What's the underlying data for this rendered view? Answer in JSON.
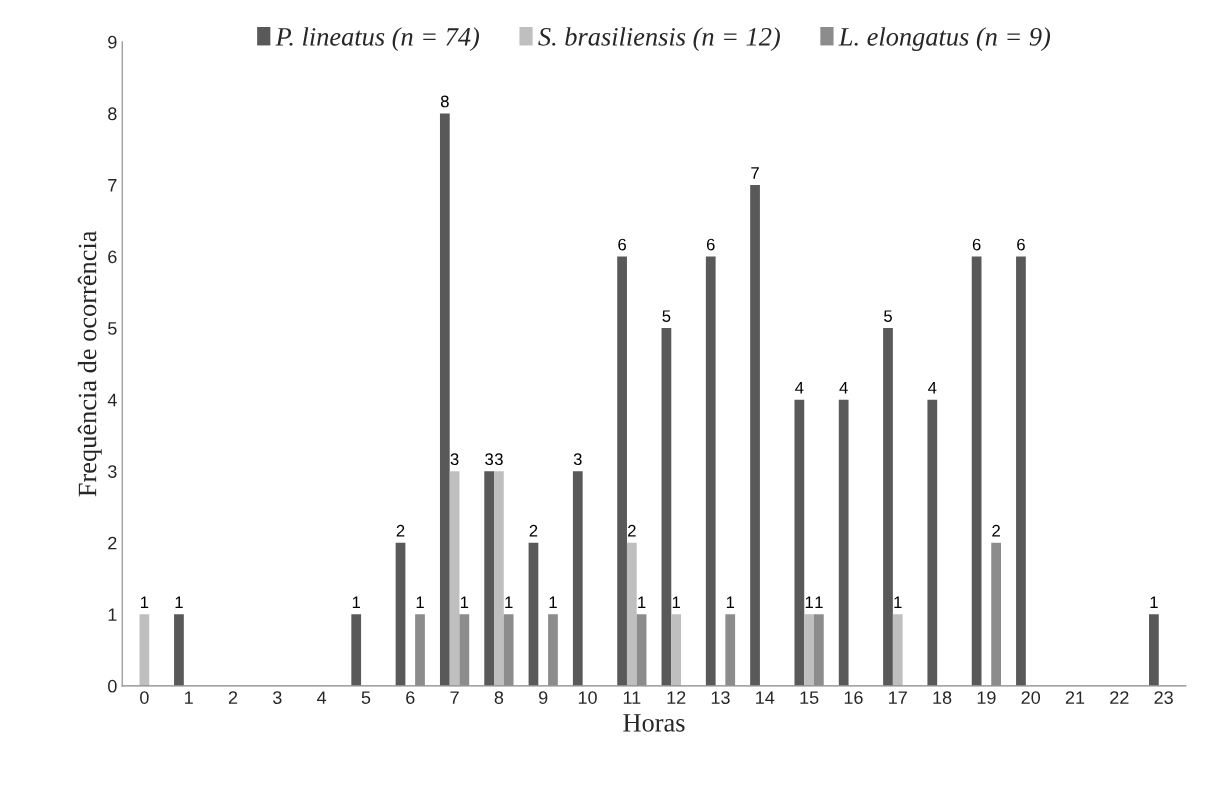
{
  "chart_data": {
    "type": "bar",
    "xlabel": "Horas",
    "ylabel": "Frequência de ocorrência",
    "categories": [
      "0",
      "1",
      "2",
      "3",
      "4",
      "5",
      "6",
      "7",
      "8",
      "9",
      "10",
      "11",
      "12",
      "13",
      "14",
      "15",
      "16",
      "17",
      "18",
      "19",
      "20",
      "21",
      "22",
      "23"
    ],
    "series": [
      {
        "name": "P. lineatus (n = 74)",
        "color": "#595959",
        "values": [
          0,
          1,
          0,
          0,
          0,
          1,
          2,
          8,
          3,
          2,
          3,
          6,
          5,
          6,
          7,
          4,
          4,
          5,
          4,
          6,
          6,
          0,
          0,
          1
        ],
        "value_labels": [
          null,
          "1",
          null,
          null,
          null,
          "1",
          "2",
          "8",
          "3",
          "2",
          "3",
          "6",
          "5",
          "6",
          "7",
          "4",
          "4",
          "5",
          "4",
          "6",
          "6",
          null,
          null,
          "1"
        ]
      },
      {
        "name": "S. brasiliensis (n = 12)",
        "color": "#bfbfbf",
        "values": [
          1,
          0,
          0,
          0,
          0,
          0,
          0,
          3,
          3,
          0,
          0,
          2,
          1,
          0,
          0,
          1,
          0,
          1,
          0,
          0,
          0,
          0,
          0,
          0
        ],
        "value_labels": [
          "1",
          null,
          null,
          null,
          null,
          null,
          null,
          "3",
          "3",
          null,
          null,
          "2",
          "1",
          null,
          null,
          "1",
          null,
          "1",
          null,
          null,
          null,
          null,
          null,
          null
        ]
      },
      {
        "name": "L. elongatus (n = 9)",
        "color": "#8c8c8c",
        "values": [
          0,
          0,
          0,
          0,
          0,
          0,
          1,
          1,
          1,
          1,
          0,
          1,
          0,
          1,
          0,
          1,
          0,
          0,
          0,
          2,
          0,
          0,
          0,
          0
        ],
        "value_labels": [
          null,
          null,
          null,
          null,
          null,
          null,
          "1",
          "1",
          "1",
          "1",
          null,
          "1",
          null,
          "1",
          null,
          "1",
          null,
          null,
          null,
          "2",
          null,
          null,
          null,
          null
        ]
      }
    ],
    "ylim": [
      0,
      9
    ],
    "yticks": [
      0,
      1,
      2,
      3,
      4,
      5,
      6,
      7,
      8,
      9
    ],
    "grid": false,
    "legend": "top"
  }
}
